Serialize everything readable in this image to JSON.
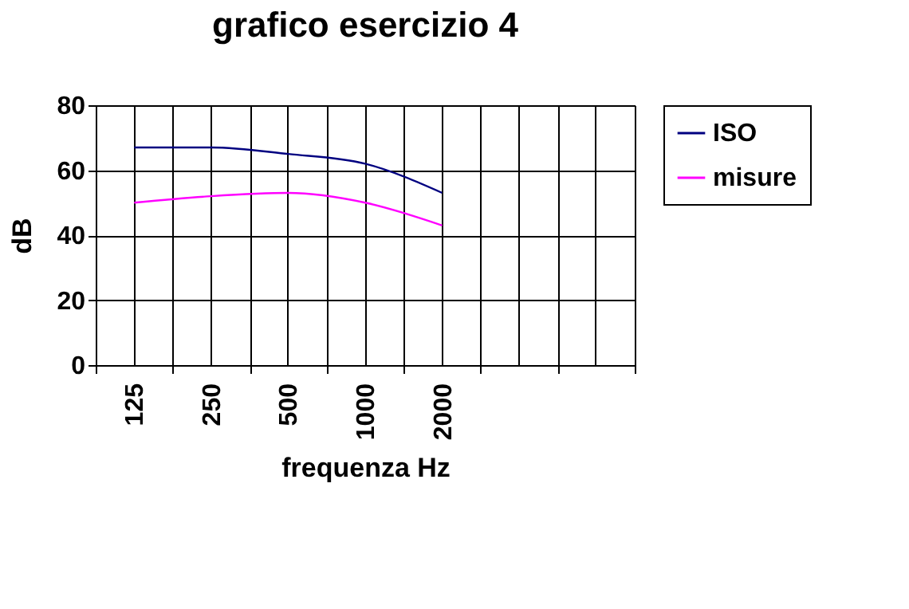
{
  "chart_data": {
    "type": "line",
    "title": "grafico esercizio 4",
    "xlabel": "frequenza Hz",
    "ylabel": "dB",
    "categories": [
      "125",
      "250",
      "500",
      "1000",
      "2000",
      null,
      null
    ],
    "series": [
      {
        "name": "ISO",
        "color": "#000080",
        "values": [
          67,
          67,
          65,
          62,
          53,
          null,
          null
        ]
      },
      {
        "name": "misure",
        "color": "#ff00ff",
        "values": [
          50,
          52,
          53,
          50,
          43,
          null,
          null
        ]
      }
    ],
    "ylim": [
      0,
      80
    ],
    "yticks": [
      0,
      20,
      40,
      60,
      80
    ],
    "grid": true,
    "legend": "right",
    "marker": "none",
    "line_style": "solid"
  }
}
